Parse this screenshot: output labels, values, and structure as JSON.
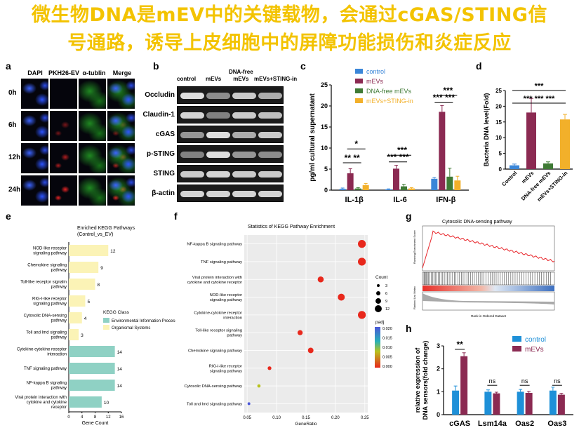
{
  "title": {
    "line1": "微生物DNA是mEV中的关键载物，会通过cGAS/STING信",
    "line2": "号通路，诱导上皮细胞中的屏障功能损伤和炎症反应"
  },
  "panels": {
    "a": "a",
    "b": "b",
    "c": "c",
    "d": "d",
    "e": "e",
    "f": "f",
    "g": "g",
    "h": "h"
  },
  "panel_a": {
    "columns": [
      "DAPI",
      "PKH26-EV",
      "α-tublin",
      "Merge"
    ],
    "rows": [
      "0h",
      "6h",
      "12h",
      "24h"
    ]
  },
  "panel_b": {
    "columns": [
      "control",
      "mEVs",
      "DNA-free\nmEVs",
      "mEVs+STING-in"
    ],
    "col_control": "control",
    "col_mevs": "mEVs",
    "col_dnafree_1": "DNA-free",
    "col_dnafree_2": "mEVs",
    "col_sting": "mEVs+STING-in",
    "proteins": [
      "Occludin",
      "Claudin-1",
      "cGAS",
      "p-STING",
      "STING",
      "β-actin"
    ]
  },
  "chart_data": [
    {
      "id": "c",
      "type": "bar",
      "categories": [
        "IL-1β",
        "IL-6",
        "IFN-β"
      ],
      "ylabel": "pg/ml cultural supernatant",
      "ylim": [
        0,
        25
      ],
      "yticks": [
        0,
        5,
        10,
        15,
        20,
        25
      ],
      "legend": [
        "control",
        "mEVs",
        "DNA-free mEVs",
        "mEVs+STING-in"
      ],
      "colors": [
        "#3a86d8",
        "#8b2a52",
        "#3f7a35",
        "#f2b02a"
      ],
      "series": [
        {
          "name": "control",
          "values": [
            0.3,
            0.2,
            2.7
          ],
          "err": [
            0.2,
            0.1,
            0.3
          ]
        },
        {
          "name": "mEVs",
          "values": [
            4.0,
            5.1,
            18.6
          ],
          "err": [
            1.1,
            0.8,
            1.5
          ]
        },
        {
          "name": "DNA-free mEVs",
          "values": [
            0.4,
            0.9,
            3.2
          ],
          "err": [
            0.2,
            0.5,
            2.0
          ]
        },
        {
          "name": "mEVs+STING-in",
          "values": [
            1.2,
            0.4,
            2.3
          ],
          "err": [
            0.4,
            0.2,
            1.0
          ]
        }
      ],
      "sig": [
        {
          "label": "** **"
        },
        {
          "label": "*"
        },
        {
          "label": "***"
        },
        {
          "label": "*** ***"
        },
        {
          "label": "***"
        },
        {
          "label": "*** ***"
        }
      ]
    },
    {
      "id": "d",
      "type": "bar",
      "categories": [
        "Control",
        "mEVs",
        "DNA-free mEVs",
        "mEVs+STING-in"
      ],
      "ylabel": "Bacteria DNA level(Fold)",
      "ylim": [
        0,
        25
      ],
      "yticks": [
        0,
        5,
        10,
        15,
        20,
        25
      ],
      "colors": [
        "#3a86d8",
        "#8b2a52",
        "#3f7a35",
        "#f2b02a"
      ],
      "values": [
        1.2,
        18.0,
        1.8,
        15.8
      ],
      "err": [
        0.4,
        4.5,
        0.5,
        1.6
      ],
      "sig_top": "***",
      "sig_row": "*** *** ***"
    },
    {
      "id": "e",
      "type": "bar",
      "orientation": "horizontal",
      "title": "Enriched KEGG Pathways",
      "subtitle": "(Control_vs_EV)",
      "xlabel": "Gene Count",
      "xticks": [
        0,
        4,
        8,
        12,
        16
      ],
      "legend_title": "KEGG Class",
      "legend": [
        "Environmental Information Processing",
        "Organismal Systems"
      ],
      "colors": {
        "Environmental Information Processing": "#8fd1c4",
        "Organismal Systems": "#fbf3b6"
      },
      "categories": [
        "NOD-like receptor\nsignaling pathway",
        "Chemokine signaling\npathway",
        "Toll-like receptor signalin\npathway",
        "RIG-I-like receptor\nsignaling pathway",
        "Cytosolic DNA-sensing\npathway",
        "Toll and Imd signaling\npathway",
        "Cytokine-cytokine receptor\ninteraction",
        "TNF signaling pathway",
        "NF-kappa B signaling\npathway",
        "Viral protein interaction with\ncytokine and cytokine\nreceptor"
      ],
      "values": [
        12,
        9,
        8,
        5,
        4,
        3,
        14,
        14,
        14,
        10
      ],
      "classes": [
        "Organismal Systems",
        "Organismal Systems",
        "Organismal Systems",
        "Organismal Systems",
        "Organismal Systems",
        "Organismal Systems",
        "Environmental Information Processing",
        "Environmental Information Processing",
        "Environmental Information Processing",
        "Environmental Information Processing"
      ]
    },
    {
      "id": "f",
      "type": "scatter",
      "title": "Statistics of KEGG Pathway Enrichment",
      "xlabel": "GeneRatio",
      "xticks": [
        0.05,
        0.1,
        0.15,
        0.2,
        0.25
      ],
      "xlim": [
        0.045,
        0.255
      ],
      "categories": [
        "NF-kappa B signaling pathway",
        "TNF signaling pathway",
        "Viral protein interaction with\ncytokine and cytokine receptor",
        "NOD-like receptor\nsignaling pathway",
        "Cytokine-cytokine receptor\ninteraction",
        "Toll-like receptor signaling\npathway",
        "Chemokine signaling pathway",
        "RIG-I-like receptor\nsignaling pathway",
        "Cytosolic DNA-sensing pathway",
        "Toll and Imd signaling pathway"
      ],
      "x": [
        0.245,
        0.245,
        0.175,
        0.21,
        0.245,
        0.14,
        0.158,
        0.088,
        0.07,
        0.053
      ],
      "count": [
        14,
        14,
        10,
        12,
        14,
        8,
        9,
        5,
        4,
        3
      ],
      "padj": [
        0.0,
        0.0,
        0.001,
        0.001,
        0.0,
        0.002,
        0.002,
        0.004,
        0.012,
        0.02
      ],
      "size_legend_title": "Count",
      "size_legend": [
        3,
        6,
        9,
        12
      ],
      "color_legend_title": "padj",
      "color_ticks": [
        "0.020",
        "0.015",
        "0.010",
        "0.005",
        "0.000"
      ]
    },
    {
      "id": "g",
      "type": "line",
      "title": "Cytosolic DNA-sensing pathway",
      "ylabel": "Running Enrichment Score",
      "ylabel2": "Ranked List Metric",
      "xlabel": "Rank in Ordered Dataset"
    },
    {
      "id": "h",
      "type": "bar",
      "categories": [
        "cGAS",
        "Lsm14a",
        "Oas2",
        "Oas3"
      ],
      "ylabel": "relative  expression of\nDNA sensors(fold change)",
      "ylabel_1": "relative  expression of",
      "ylabel_2": "DNA sensors(fold change)",
      "ylim": [
        0,
        3
      ],
      "yticks": [
        0,
        1,
        2,
        3
      ],
      "legend": [
        "control",
        "mEVs"
      ],
      "colors": [
        "#1e90d8",
        "#8b2a52"
      ],
      "series": [
        {
          "name": "control",
          "values": [
            1.05,
            1.0,
            1.0,
            1.05
          ],
          "err": [
            0.2,
            0.08,
            0.1,
            0.15
          ]
        },
        {
          "name": "mEVs",
          "values": [
            2.55,
            0.93,
            0.95,
            0.87
          ],
          "err": [
            0.15,
            0.05,
            0.07,
            0.06
          ]
        }
      ],
      "sig": [
        "**",
        "ns",
        "ns",
        "ns"
      ]
    }
  ]
}
